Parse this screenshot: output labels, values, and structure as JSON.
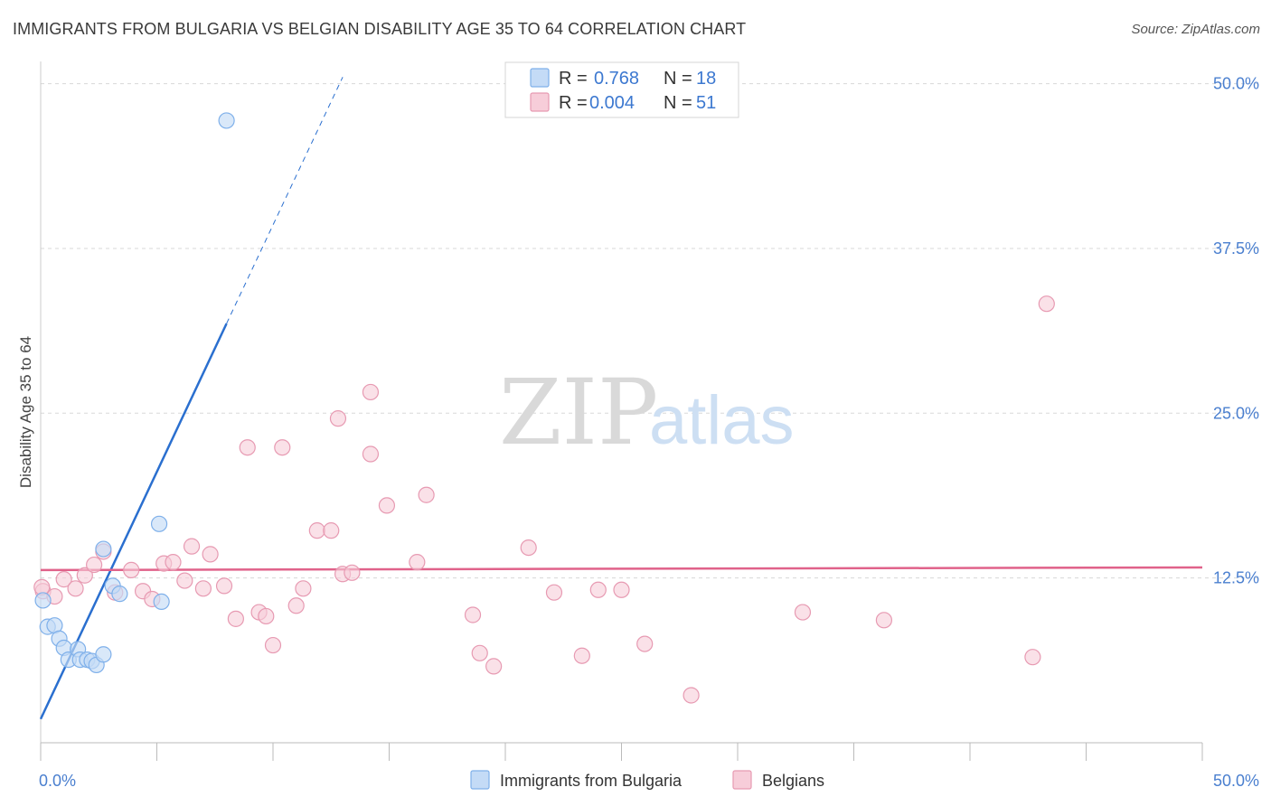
{
  "title": "IMMIGRANTS FROM BULGARIA VS BELGIAN DISABILITY AGE 35 TO 64 CORRELATION CHART",
  "source": "Source: ZipAtlas.com",
  "watermark": {
    "zip": "ZIP",
    "atlas": "atlas"
  },
  "colors": {
    "blue": "#7fb0ea",
    "blue_fill": "#c4dbf6",
    "blue_line": "#2a6fcf",
    "pink": "#e79ab2",
    "pink_fill": "#f7cdd9",
    "pink_line": "#e0628a",
    "axis_label": "#4a7fcf",
    "grid": "#d8d8d8"
  },
  "legend": {
    "rows": [
      {
        "r_label": "R =",
        "r_value": "0.768",
        "n_label": "N =",
        "n_value": "18"
      },
      {
        "r_label": "R =",
        "r_value": "0.004",
        "n_label": "N =",
        "n_value": "51"
      }
    ]
  },
  "bottom_legend": {
    "items": [
      "Immigrants from Bulgaria",
      "Belgians"
    ]
  },
  "chart_data": {
    "type": "scatter",
    "title": "IMMIGRANTS FROM BULGARIA VS BELGIAN DISABILITY AGE 35 TO 64 CORRELATION CHART",
    "xlabel": "",
    "ylabel": "Disability Age 35 to 64",
    "xlim": [
      0,
      50
    ],
    "ylim": [
      0,
      51
    ],
    "x_tick_labels": [
      "0.0%",
      "50.0%"
    ],
    "y_ticks": [
      12.5,
      25.0,
      37.5,
      50.0
    ],
    "y_tick_labels": [
      "12.5%",
      "25.0%",
      "37.5%",
      "50.0%"
    ],
    "grid": true,
    "series": [
      {
        "name": "Immigrants from Bulgaria",
        "R": 0.768,
        "N": 18,
        "points": [
          [
            0.1,
            10.8
          ],
          [
            0.3,
            8.8
          ],
          [
            0.6,
            8.9
          ],
          [
            0.8,
            7.9
          ],
          [
            1.0,
            7.2
          ],
          [
            1.2,
            6.3
          ],
          [
            1.6,
            7.1
          ],
          [
            1.7,
            6.3
          ],
          [
            2.0,
            6.3
          ],
          [
            2.2,
            6.2
          ],
          [
            2.4,
            5.9
          ],
          [
            2.7,
            6.7
          ],
          [
            2.7,
            14.7
          ],
          [
            3.1,
            11.9
          ],
          [
            3.4,
            11.3
          ],
          [
            5.1,
            16.6
          ],
          [
            5.2,
            10.7
          ],
          [
            8.0,
            47.2
          ]
        ],
        "trend": {
          "x0": 0.0,
          "y0": 1.8,
          "x1": 8.0,
          "y1": 31.8,
          "dashed_to_x": 13.0,
          "dashed_to_y": 50.5
        }
      },
      {
        "name": "Belgians",
        "R": 0.004,
        "N": 51,
        "points": [
          [
            0.1,
            11.5
          ],
          [
            0.6,
            11.1
          ],
          [
            1.0,
            12.4
          ],
          [
            1.5,
            11.7
          ],
          [
            1.9,
            12.7
          ],
          [
            2.3,
            13.5
          ],
          [
            2.7,
            14.5
          ],
          [
            3.2,
            11.4
          ],
          [
            3.9,
            13.1
          ],
          [
            4.4,
            11.5
          ],
          [
            4.8,
            10.9
          ],
          [
            5.3,
            13.6
          ],
          [
            5.7,
            13.7
          ],
          [
            6.2,
            12.3
          ],
          [
            6.5,
            14.9
          ],
          [
            7.0,
            11.7
          ],
          [
            7.3,
            14.3
          ],
          [
            7.9,
            11.9
          ],
          [
            8.4,
            9.4
          ],
          [
            8.9,
            22.4
          ],
          [
            9.4,
            9.9
          ],
          [
            9.7,
            9.6
          ],
          [
            10.0,
            7.4
          ],
          [
            10.4,
            22.4
          ],
          [
            11.0,
            10.4
          ],
          [
            11.3,
            11.7
          ],
          [
            11.9,
            16.1
          ],
          [
            12.5,
            16.1
          ],
          [
            12.8,
            24.6
          ],
          [
            13.0,
            12.8
          ],
          [
            13.4,
            12.9
          ],
          [
            14.2,
            26.6
          ],
          [
            14.2,
            21.9
          ],
          [
            14.9,
            18.0
          ],
          [
            16.2,
            13.7
          ],
          [
            16.6,
            18.8
          ],
          [
            18.6,
            9.7
          ],
          [
            18.9,
            6.8
          ],
          [
            19.5,
            5.8
          ],
          [
            21.0,
            14.8
          ],
          [
            22.1,
            11.4
          ],
          [
            23.3,
            6.6
          ],
          [
            24.0,
            11.6
          ],
          [
            25.0,
            11.6
          ],
          [
            26.0,
            7.5
          ],
          [
            28.0,
            3.6
          ],
          [
            32.8,
            9.9
          ],
          [
            36.3,
            9.3
          ],
          [
            42.7,
            6.5
          ],
          [
            43.3,
            33.3
          ],
          [
            0.05,
            11.8
          ]
        ],
        "trend": {
          "x0": 0.0,
          "y0": 13.1,
          "x1": 50.0,
          "y1": 13.3
        }
      }
    ]
  }
}
